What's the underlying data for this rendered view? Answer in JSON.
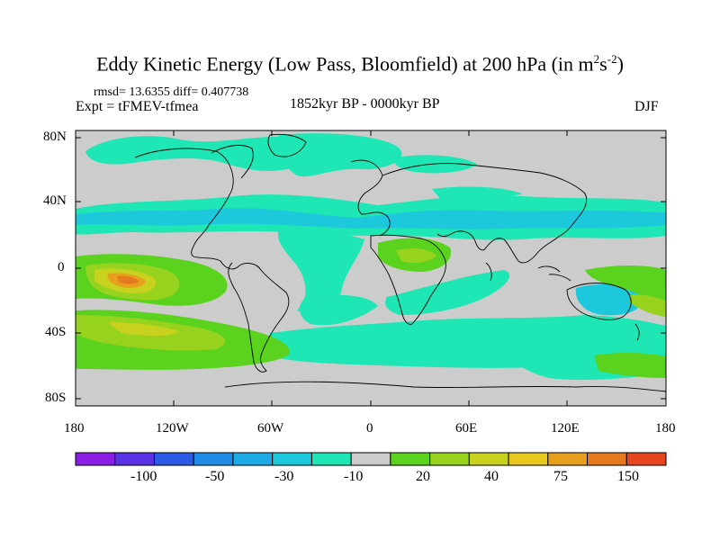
{
  "title": {
    "main": "Eddy Kinetic Energy (Low Pass, Bloomfield) at 200 hPa (in m",
    "sup1": "2",
    "s": "s",
    "sup2": "-2",
    "close": ")"
  },
  "stats": {
    "text": "rmsd= 13.6355 diff= 0.407738"
  },
  "experiment": "Expt = tFMEV-tfmea",
  "period": "1852kyr BP - 0000kyr BP",
  "season": "DJF",
  "lat_labels": [
    "80N",
    "40N",
    "0",
    "40S",
    "80S"
  ],
  "lon_labels": [
    "180",
    "120W",
    "60W",
    "0",
    "60E",
    "120E",
    "180"
  ],
  "colorbar": {
    "colors": [
      "#8a1ee6",
      "#5a32e6",
      "#2a5ae6",
      "#1e8ce6",
      "#1eaae6",
      "#1ec8dc",
      "#1ee6b4",
      "#cccccc",
      "#5ad21e",
      "#96d21e",
      "#c8d21e",
      "#e6c81e",
      "#e6a01e",
      "#e6781e",
      "#e6461e"
    ],
    "labels": [
      "-100",
      "-50",
      "-30",
      "-10",
      "20",
      "40",
      "75",
      "150"
    ]
  }
}
